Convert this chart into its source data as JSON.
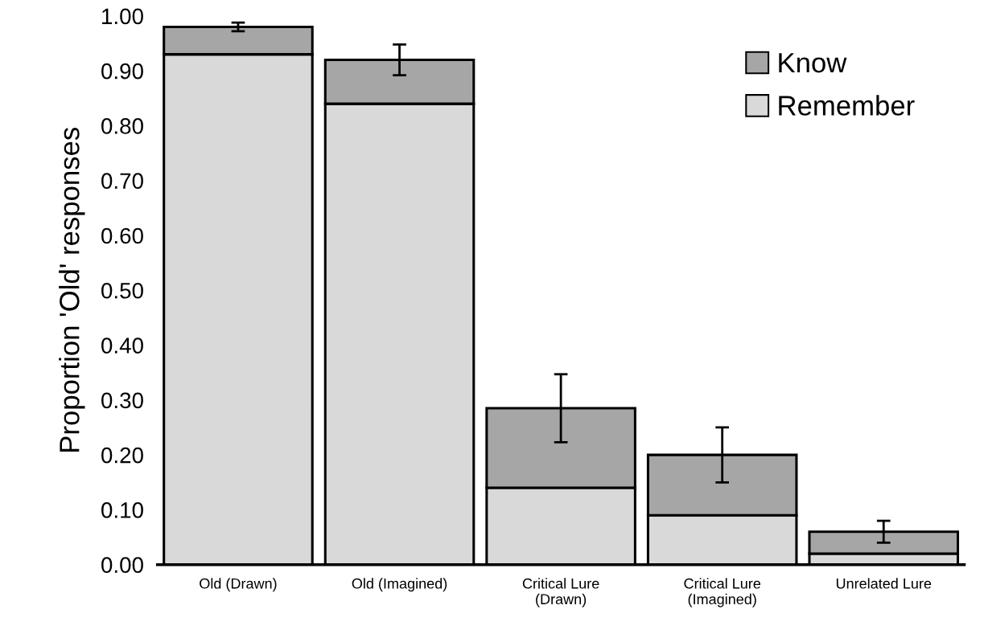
{
  "chart_data": {
    "type": "bar",
    "stacked": true,
    "ylabel": "Proportion 'Old' responses",
    "categories": [
      "Old (Drawn)",
      "Old (Imagined)",
      "Critical Lure\n(Drawn)",
      "Critical Lure\n(Imagined)",
      "Unrelated Lure"
    ],
    "series": [
      {
        "name": "Remember",
        "color": "#d9d9d9",
        "values": [
          0.93,
          0.84,
          0.14,
          0.09,
          0.02
        ]
      },
      {
        "name": "Know",
        "color": "#a6a6a6",
        "values": [
          0.05,
          0.08,
          0.145,
          0.11,
          0.04
        ],
        "errors": [
          0.008,
          0.028,
          0.062,
          0.05,
          0.02
        ]
      }
    ],
    "ylim": [
      0,
      1.0
    ],
    "yticks": [
      {
        "value": 0,
        "label": "0.00"
      },
      {
        "value": 0.1,
        "label": "0.10"
      },
      {
        "value": 0.2,
        "label": "0.20"
      },
      {
        "value": 0.3,
        "label": "0.30"
      },
      {
        "value": 0.4,
        "label": "0.40"
      },
      {
        "value": 0.5,
        "label": "0.50"
      },
      {
        "value": 0.6,
        "label": "0.60"
      },
      {
        "value": 0.7,
        "label": "0.70"
      },
      {
        "value": 0.8,
        "label": "0.80"
      },
      {
        "value": 0.9,
        "label": "0.90"
      },
      {
        "value": 1.0,
        "label": "1.00"
      }
    ],
    "grid": false,
    "legend": "top right"
  }
}
